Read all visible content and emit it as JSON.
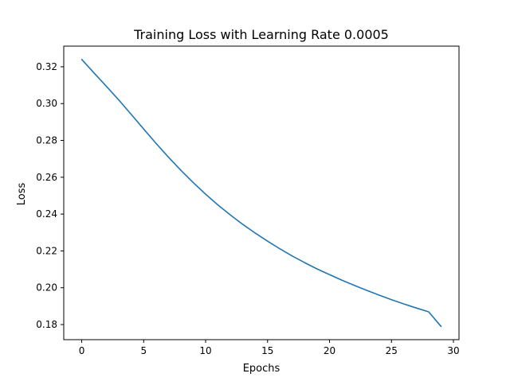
{
  "chart_data": {
    "type": "line",
    "title": "Training Loss with Learning Rate 0.0005",
    "xlabel": "Epochs",
    "ylabel": "Loss",
    "xlim": [
      -1.45,
      30.45
    ],
    "ylim": [
      0.1718,
      0.3312
    ],
    "x_ticks": [
      0,
      5,
      10,
      15,
      20,
      25,
      30
    ],
    "y_ticks": [
      0.18,
      0.2,
      0.22,
      0.24,
      0.26,
      0.28,
      0.3,
      0.32
    ],
    "x_tick_labels": [
      "0",
      "5",
      "10",
      "15",
      "20",
      "25",
      "30"
    ],
    "y_tick_labels": [
      "0.18",
      "0.20",
      "0.22",
      "0.24",
      "0.26",
      "0.28",
      "0.30",
      "0.32"
    ],
    "grid": false,
    "legend": false,
    "series": [
      {
        "color": "#1f77b4",
        "x": [
          0,
          1,
          2,
          3,
          4,
          5,
          6,
          7,
          8,
          9,
          10,
          11,
          12,
          13,
          14,
          15,
          16,
          17,
          18,
          19,
          20,
          21,
          22,
          23,
          24,
          25,
          26,
          27,
          28,
          29
        ],
        "y": [
          0.324,
          0.3166,
          0.3093,
          0.3019,
          0.2941,
          0.2862,
          0.2784,
          0.2709,
          0.2638,
          0.2571,
          0.2508,
          0.2449,
          0.2395,
          0.2344,
          0.2297,
          0.2253,
          0.2211,
          0.2172,
          0.2136,
          0.2102,
          0.2071,
          0.2041,
          0.2013,
          0.1986,
          0.196,
          0.1935,
          0.1912,
          0.189,
          0.1869,
          0.179
        ]
      }
    ]
  }
}
